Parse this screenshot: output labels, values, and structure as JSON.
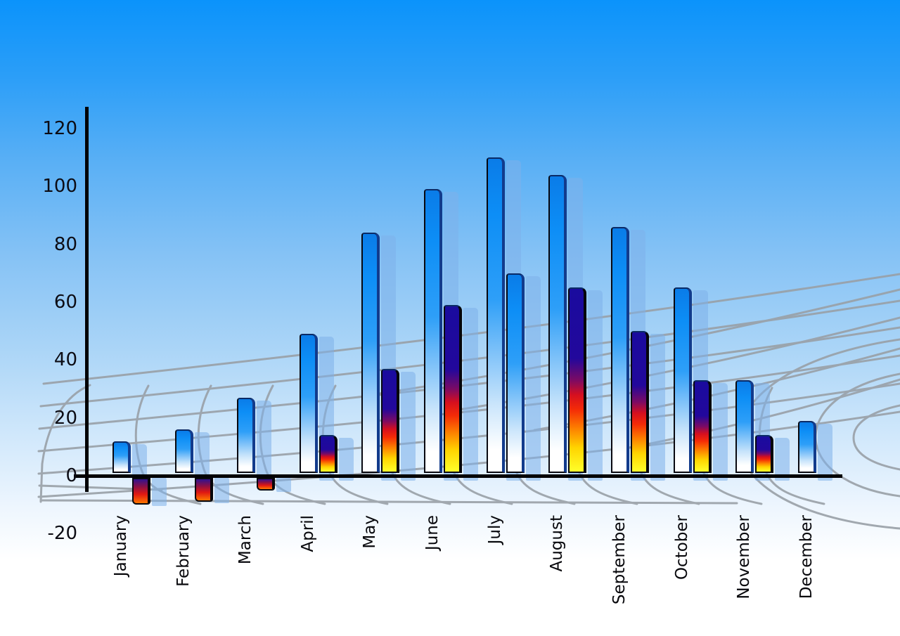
{
  "page": {
    "title": "",
    "description_visible_text_only": true
  },
  "colors": {
    "sky_top": "#0b93fb",
    "sky_bottom": "#ffffff",
    "axis": "#020204",
    "grid_line": "#99a0a7",
    "blue_bar_top": "#0d8ef6",
    "blue_bar_bottom": "#ffffff",
    "flame_bar_navy": "#1a0b9e",
    "flame_bar_red": "#e8100f",
    "flame_bar_yellow": "#ffff2a",
    "shadow_bar": "rgba(126,177,233,0.55)",
    "tick_text": "#0c0c14"
  },
  "chart_data": {
    "type": "bar",
    "title": "",
    "xlabel": "",
    "ylabel": "",
    "legend": "none",
    "grid": "decorative curved perspective mesh behind bars",
    "ylim": [
      -20,
      120
    ],
    "yticks": [
      120,
      100,
      80,
      60,
      40,
      20,
      0,
      -20
    ],
    "categories": [
      "January",
      "February",
      "March",
      "April",
      "May",
      "June",
      "July",
      "August",
      "September",
      "October",
      "November",
      "December"
    ],
    "series": [
      {
        "name": "blue",
        "color": "#0d8ef6",
        "values": [
          12,
          16,
          27,
          49,
          84,
          99,
          110,
          104,
          86,
          65,
          33,
          19
        ]
      },
      {
        "name": "flame",
        "color": "#e8100f",
        "values": [
          -10,
          -9,
          -5,
          14,
          37,
          59,
          70,
          65,
          50,
          33,
          14,
          null
        ],
        "point_styles": [
          "flame",
          "flame",
          "flame",
          "flame",
          "flame",
          "flame",
          "blue",
          "flame",
          "flame",
          "flame",
          "flame",
          null
        ]
      }
    ]
  }
}
